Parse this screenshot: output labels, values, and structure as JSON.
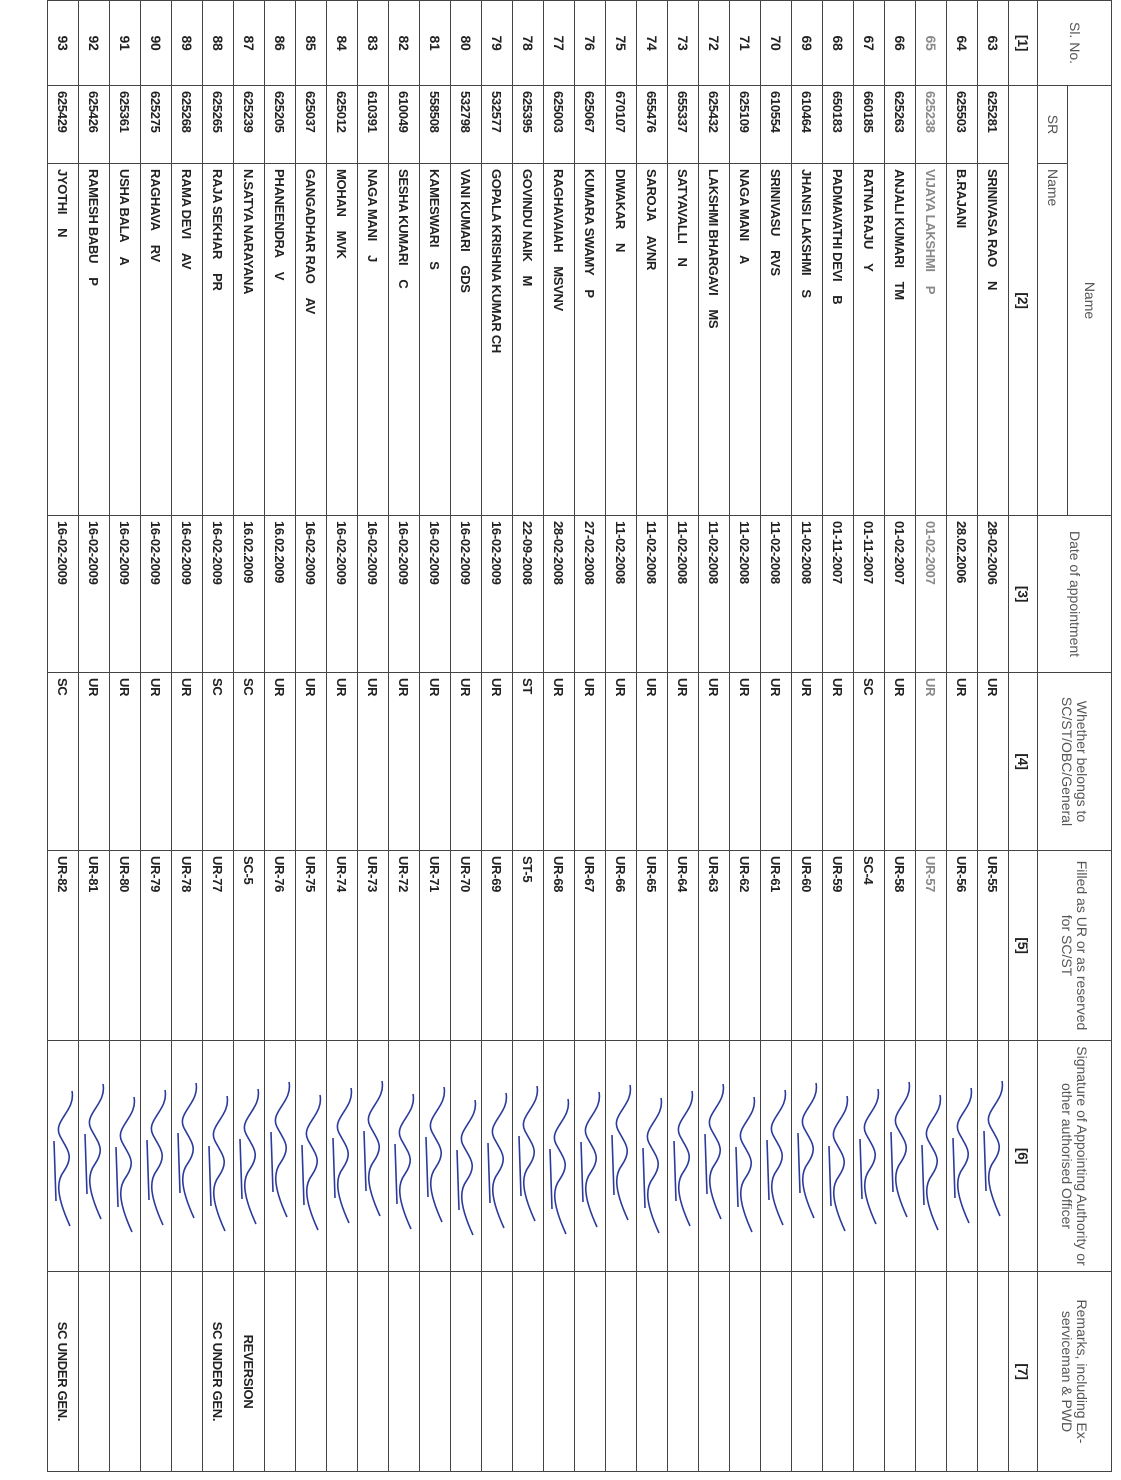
{
  "header": {
    "sl_no": "Sl. No.",
    "name_group": "Name",
    "sr": "SR",
    "name": "Name",
    "date": "Date of appointment",
    "category": "Whether belongs to SC/ST/OBC/General",
    "filled": "Filled as UR or as reserved for SC/ST",
    "signature": "Signature of Appointing Authority or other authorised Officer",
    "remarks": "Remarks, including Ex-serviceman & PWD"
  },
  "column_numbers": [
    "[1]",
    "[2]",
    "[3]",
    "[4]",
    "[5]",
    "[6]",
    "[7]"
  ],
  "rows": [
    {
      "sl": "63",
      "sr": "625281",
      "name": "SRINIVASA RAO",
      "initial": "N",
      "date": "28-02-2006",
      "category": "UR",
      "filled": "UR-55"
    },
    {
      "sl": "64",
      "sr": "625503",
      "name": "B.RAJANI",
      "date": "28.02.2006",
      "category": "UR",
      "filled": "UR-56"
    },
    {
      "sl": "65",
      "sr": "625238",
      "name": "VIJAYA LAKSHMI",
      "initial": "P",
      "date": "01-02-2007",
      "category": "UR",
      "filled": "UR-57"
    },
    {
      "sl": "66",
      "sr": "625263",
      "name": "ANJALI KUMARI",
      "initial": "TM",
      "date": "01-02-2007",
      "category": "UR",
      "filled": "UR-58"
    },
    {
      "sl": "67",
      "sr": "660185",
      "name": "RATNA RAJU",
      "initial": "Y",
      "date": "01-11-2007",
      "category": "SC",
      "filled": "SC-4"
    },
    {
      "sl": "68",
      "sr": "650183",
      "name": "PADMAVATHI DEVI",
      "initial": "B",
      "date": "01-11-2007",
      "category": "UR",
      "filled": "UR-59"
    },
    {
      "sl": "69",
      "sr": "610464",
      "name": "JHANSI LAKSHMI",
      "initial": "S",
      "date": "11-02-2008",
      "category": "UR",
      "filled": "UR-60"
    },
    {
      "sl": "70",
      "sr": "610554",
      "name": "SRINIVASU",
      "initial": "RVS",
      "date": "11-02-2008",
      "category": "UR",
      "filled": "UR-61"
    },
    {
      "sl": "71",
      "sr": "625109",
      "name": "NAGA MANI",
      "initial": "A",
      "date": "11-02-2008",
      "category": "UR",
      "filled": "UR-62"
    },
    {
      "sl": "72",
      "sr": "625432",
      "name": "LAKSHMI BHARGAVI",
      "initial": "MS",
      "date": "11-02-2008",
      "category": "UR",
      "filled": "UR-63"
    },
    {
      "sl": "73",
      "sr": "655337",
      "name": "SATYAVALLI",
      "initial": "N",
      "date": "11-02-2008",
      "category": "UR",
      "filled": "UR-64"
    },
    {
      "sl": "74",
      "sr": "655476",
      "name": "SAROJA",
      "initial": "AVNR",
      "date": "11-02-2008",
      "category": "UR",
      "filled": "UR-65"
    },
    {
      "sl": "75",
      "sr": "670107",
      "name": "DIWAKAR",
      "initial": "N",
      "date": "11-02-2008",
      "category": "UR",
      "filled": "UR-66"
    },
    {
      "sl": "76",
      "sr": "625067",
      "name": "KUMARA SWAMY",
      "initial": "P",
      "date": "27-02-2008",
      "category": "UR",
      "filled": "UR-67"
    },
    {
      "sl": "77",
      "sr": "625003",
      "name": "RAGHAVAIAH",
      "initial": "MSVNV",
      "date": "28-02-2008",
      "category": "UR",
      "filled": "UR-68"
    },
    {
      "sl": "78",
      "sr": "625395",
      "name": "GOVINDU NAIK",
      "initial": "M",
      "date": "22-09-2008",
      "category": "ST",
      "filled": "ST-5"
    },
    {
      "sl": "79",
      "sr": "532577",
      "name": "GOPALA KRISHNA KUMAR CH",
      "date": "16-02-2009",
      "category": "UR",
      "filled": "UR-69"
    },
    {
      "sl": "80",
      "sr": "532798",
      "name": "VANI KUMARI",
      "initial": "GDS",
      "date": "16-02-2009",
      "category": "UR",
      "filled": "UR-70"
    },
    {
      "sl": "81",
      "sr": "558508",
      "name": "KAMESWARI",
      "initial": "S",
      "date": "16-02-2009",
      "category": "UR",
      "filled": "UR-71"
    },
    {
      "sl": "82",
      "sr": "610049",
      "name": "SESHA KUMARI",
      "initial": "C",
      "date": "16-02-2009",
      "category": "UR",
      "filled": "UR-72"
    },
    {
      "sl": "83",
      "sr": "610391",
      "name": "NAGA MANI",
      "initial": "J",
      "date": "16-02-2009",
      "category": "UR",
      "filled": "UR-73"
    },
    {
      "sl": "84",
      "sr": "625012",
      "name": "MOHAN",
      "initial": "MVK",
      "date": "16-02-2009",
      "category": "UR",
      "filled": "UR-74"
    },
    {
      "sl": "85",
      "sr": "625037",
      "name": "GANGADHAR RAO",
      "initial": "AV",
      "date": "16-02-2009",
      "category": "UR",
      "filled": "UR-75"
    },
    {
      "sl": "86",
      "sr": "625205",
      "name": "PHANEENDRA",
      "initial": "V",
      "date": "16.02.2009",
      "category": "UR",
      "filled": "UR-76"
    },
    {
      "sl": "87",
      "sr": "625239",
      "name": "N.SATYA NARAYANA",
      "date": "16.02.2009",
      "category": "SC",
      "filled": "SC-5",
      "remarks": "REVERSION"
    },
    {
      "sl": "88",
      "sr": "625265",
      "name": "RAJA SEKHAR",
      "initial": "PR",
      "date": "16-02-2009",
      "category": "SC",
      "filled": "UR-77",
      "remarks": "SC UNDER GEN."
    },
    {
      "sl": "89",
      "sr": "625268",
      "name": "RAMA DEVI",
      "initial": "AV",
      "date": "16-02-2009",
      "category": "UR",
      "filled": "UR-78"
    },
    {
      "sl": "90",
      "sr": "625275",
      "name": "RAGHAVA",
      "initial": "RV",
      "date": "16-02-2009",
      "category": "UR",
      "filled": "UR-79"
    },
    {
      "sl": "91",
      "sr": "625361",
      "name": "USHA BALA",
      "initial": "A",
      "date": "16-02-2009",
      "category": "UR",
      "filled": "UR-80"
    },
    {
      "sl": "92",
      "sr": "625426",
      "name": "RAMESH BABU",
      "initial": "P",
      "date": "16-02-2009",
      "category": "UR",
      "filled": "UR-81"
    },
    {
      "sl": "93",
      "sr": "625429",
      "name": "JYOTHI",
      "initial": "N",
      "date": "16-02-2009",
      "category": "SC",
      "filled": "UR-82",
      "remarks": "SC UNDER GEN."
    }
  ]
}
